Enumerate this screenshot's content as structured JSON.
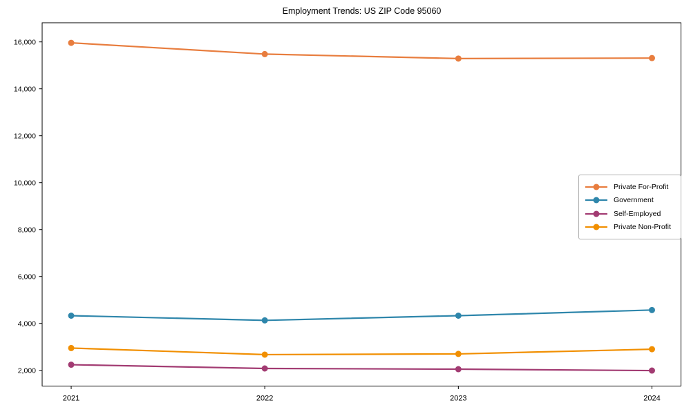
{
  "chart_data": {
    "type": "line",
    "title": "Employment Trends: US ZIP Code 95060",
    "xlabel": "",
    "ylabel": "",
    "x": [
      2021,
      2022,
      2023,
      2024
    ],
    "xtick_labels": [
      "2021",
      "2022",
      "2023",
      "2024"
    ],
    "yticks": [
      2000,
      4000,
      6000,
      8000,
      10000,
      12000,
      14000,
      16000
    ],
    "ytick_labels": [
      "2,000",
      "4,000",
      "6,000",
      "8,000",
      "10,000",
      "12,000",
      "14,000",
      "16,000"
    ],
    "xlim": [
      2020.85,
      2024.15
    ],
    "ylim": [
      1330,
      16815
    ],
    "grid": false,
    "legend_position": "center-right",
    "marker": "circle",
    "series": [
      {
        "name": "Private For-Profit",
        "color": "#E87D3E",
        "values": [
          15960,
          15480,
          15290,
          15310
        ]
      },
      {
        "name": "Government",
        "color": "#2E86AB",
        "values": [
          4330,
          4130,
          4330,
          4570
        ]
      },
      {
        "name": "Self-Employed",
        "color": "#A23B72",
        "values": [
          2240,
          2080,
          2050,
          1990
        ]
      },
      {
        "name": "Private Non-Profit",
        "color": "#F18F01",
        "values": [
          2950,
          2670,
          2700,
          2900
        ]
      }
    ],
    "axis_color": "#000000",
    "background_color": "#ffffff"
  }
}
